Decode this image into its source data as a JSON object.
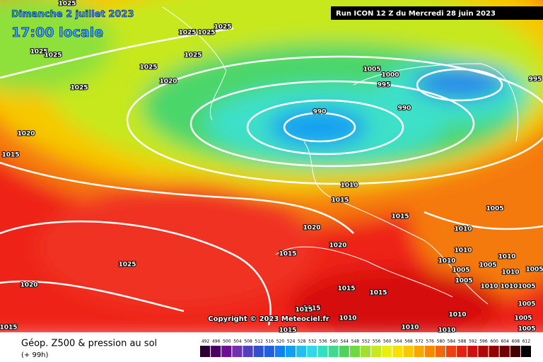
{
  "header": {
    "date": "Dimanche 2 juillet 2023",
    "time": "17:00 locale",
    "run": "Run ICON 12 Z du Mercredi 28 juin 2023"
  },
  "map": {
    "copyright": "Copyright © 2023 Meteociel.fr",
    "isobar_labels": [
      1025,
      1025,
      1025,
      1025,
      1025,
      1025,
      1025,
      1025,
      1020,
      1025,
      1005,
      1000,
      995,
      995,
      990,
      990,
      1020,
      1015,
      1010,
      1015,
      1015,
      1005,
      1020,
      1010,
      1020,
      1015,
      1010,
      1025,
      1010,
      1010,
      1005,
      1005,
      1010,
      1005,
      1020,
      1015,
      1015,
      1005,
      1010,
      1010,
      1005,
      1015,
      1015,
      1010,
      1010,
      1005,
      1005,
      1010,
      1015,
      1010,
      1015,
      1005
    ]
  },
  "legend": {
    "title": "Géop. Z500 & pression au sol",
    "lead": "(+ 99h)",
    "scale": [
      492,
      496,
      500,
      504,
      508,
      512,
      516,
      520,
      524,
      528,
      532,
      536,
      540,
      544,
      548,
      552,
      556,
      560,
      564,
      568,
      572,
      576,
      580,
      584,
      588,
      592,
      596,
      600,
      604,
      608,
      612
    ]
  }
}
